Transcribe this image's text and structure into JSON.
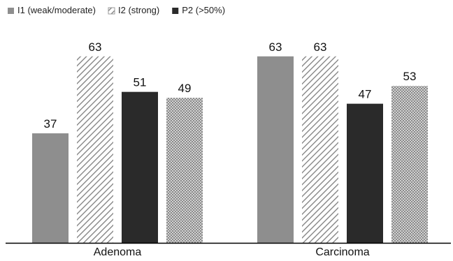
{
  "chart_data": {
    "type": "bar",
    "title": "",
    "xlabel": "",
    "ylabel": "",
    "categories": [
      "Adenoma",
      "Carcinoma"
    ],
    "series": [
      {
        "name": "I1 (weak/moderate)",
        "values": [
          37,
          63
        ],
        "color": "#8e8e8e",
        "pattern": "solid"
      },
      {
        "name": "I2 (strong)",
        "values": [
          63,
          63
        ],
        "color": "#8a8a8a",
        "pattern": "diagonal-hatch"
      },
      {
        "name": "P2 (>50%)",
        "values": [
          51,
          47
        ],
        "color": "#2a2a2a",
        "pattern": "solid"
      },
      {
        "name": "",
        "values": [
          49,
          53
        ],
        "color": "#8a8a8a",
        "pattern": "crosshatch"
      }
    ],
    "ylim": [
      0,
      70
    ],
    "grid": false,
    "legend_position": "top-left"
  }
}
